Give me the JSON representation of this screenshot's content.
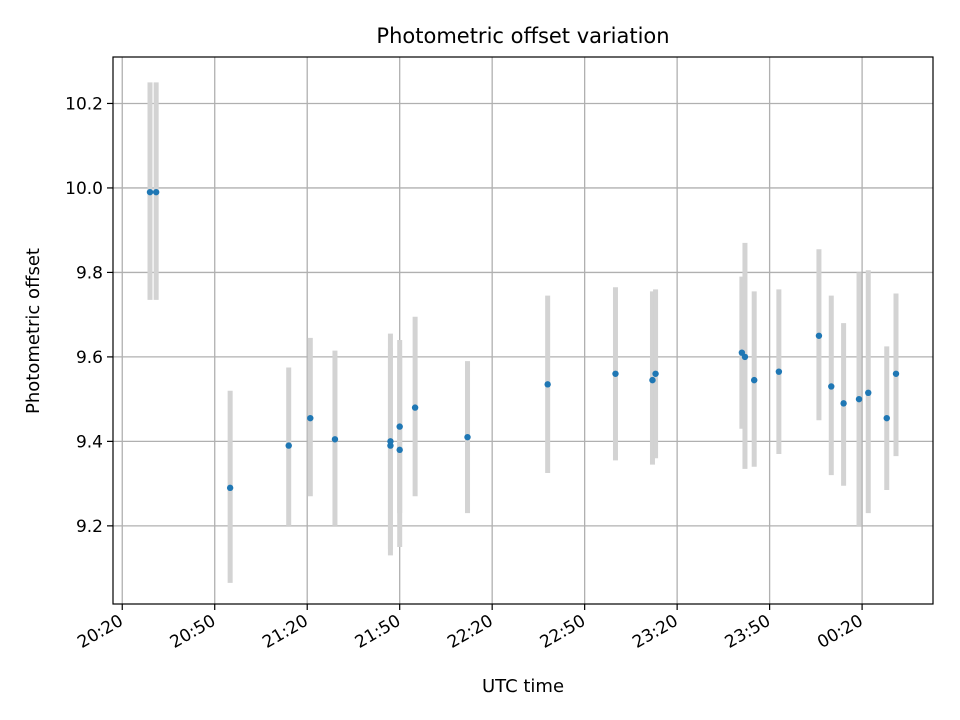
{
  "chart_data": {
    "type": "scatter",
    "title": "Photometric offset variation",
    "xlabel": "UTC time",
    "ylabel": "Photometric offset",
    "x_tick_labels": [
      "20:20",
      "20:50",
      "21:20",
      "21:50",
      "22:20",
      "22:50",
      "23:20",
      "23:50",
      "00:20"
    ],
    "y_ticks": [
      9.2,
      9.4,
      9.6,
      9.8,
      10.0,
      10.2
    ],
    "y_tick_labels": [
      "9.2",
      "9.4",
      "9.6",
      "9.8",
      "10.0",
      "10.2"
    ],
    "xlim": [
      "20:17",
      "00:43"
    ],
    "ylim": [
      9.015,
      10.31
    ],
    "grid": true,
    "marker_color": "#1f77b4",
    "errorbar_color": "#d3d3d3",
    "points": [
      {
        "x": "20:29",
        "y": 9.99,
        "ylow": 9.735,
        "yhigh": 10.25
      },
      {
        "x": "20:31",
        "y": 9.99,
        "ylow": 9.735,
        "yhigh": 10.25
      },
      {
        "x": "20:55",
        "y": 9.29,
        "ylow": 9.065,
        "yhigh": 9.52
      },
      {
        "x": "21:14",
        "y": 9.39,
        "ylow": 9.2,
        "yhigh": 9.575
      },
      {
        "x": "21:21",
        "y": 9.455,
        "ylow": 9.27,
        "yhigh": 9.645
      },
      {
        "x": "21:29",
        "y": 9.405,
        "ylow": 9.2,
        "yhigh": 9.615
      },
      {
        "x": "21:47",
        "y": 9.39,
        "ylow": 9.13,
        "yhigh": 9.655
      },
      {
        "x": "21:47",
        "y": 9.4,
        "ylow": 9.145,
        "yhigh": 9.62
      },
      {
        "x": "21:50",
        "y": 9.38,
        "ylow": 9.15,
        "yhigh": 9.6
      },
      {
        "x": "21:50",
        "y": 9.435,
        "ylow": 9.23,
        "yhigh": 9.64
      },
      {
        "x": "21:55",
        "y": 9.48,
        "ylow": 9.27,
        "yhigh": 9.695
      },
      {
        "x": "22:12",
        "y": 9.41,
        "ylow": 9.23,
        "yhigh": 9.59
      },
      {
        "x": "22:38",
        "y": 9.535,
        "ylow": 9.325,
        "yhigh": 9.745
      },
      {
        "x": "23:00",
        "y": 9.56,
        "ylow": 9.355,
        "yhigh": 9.765
      },
      {
        "x": "23:12",
        "y": 9.545,
        "ylow": 9.345,
        "yhigh": 9.755
      },
      {
        "x": "23:13",
        "y": 9.56,
        "ylow": 9.36,
        "yhigh": 9.76
      },
      {
        "x": "23:41",
        "y": 9.61,
        "ylow": 9.43,
        "yhigh": 9.79
      },
      {
        "x": "23:42",
        "y": 9.6,
        "ylow": 9.335,
        "yhigh": 9.87
      },
      {
        "x": "23:45",
        "y": 9.545,
        "ylow": 9.34,
        "yhigh": 9.755
      },
      {
        "x": "23:53",
        "y": 9.565,
        "ylow": 9.37,
        "yhigh": 9.76
      },
      {
        "x": "00:06",
        "y": 9.65,
        "ylow": 9.45,
        "yhigh": 9.855
      },
      {
        "x": "00:10",
        "y": 9.53,
        "ylow": 9.32,
        "yhigh": 9.745
      },
      {
        "x": "00:14",
        "y": 9.49,
        "ylow": 9.295,
        "yhigh": 9.68
      },
      {
        "x": "00:19",
        "y": 9.5,
        "ylow": 9.2,
        "yhigh": 9.8
      },
      {
        "x": "00:22",
        "y": 9.515,
        "ylow": 9.23,
        "yhigh": 9.805
      },
      {
        "x": "00:28",
        "y": 9.455,
        "ylow": 9.285,
        "yhigh": 9.625
      },
      {
        "x": "00:31",
        "y": 9.56,
        "ylow": 9.365,
        "yhigh": 9.75
      }
    ]
  }
}
